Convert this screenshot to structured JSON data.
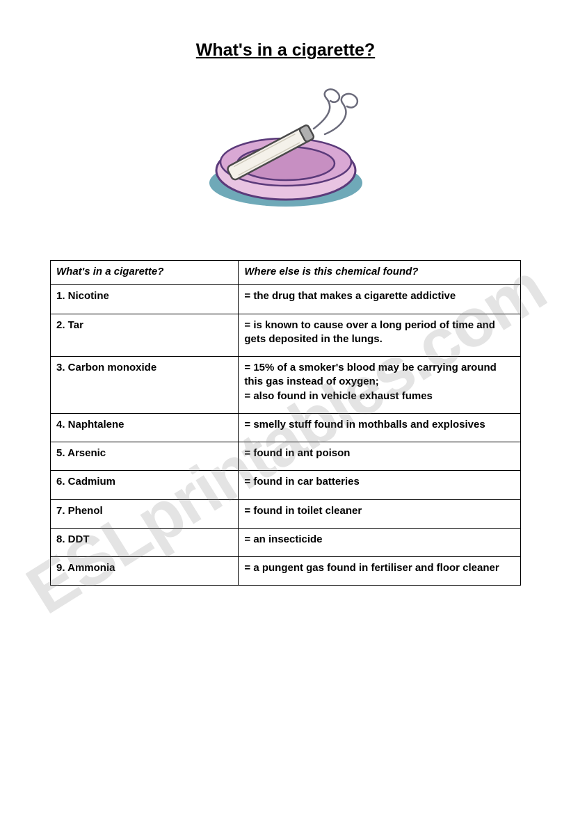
{
  "title": "What's in a cigarette?",
  "watermark": "ESLprintables.com",
  "table": {
    "header_left": "What's in a cigarette?",
    "header_right": "Where else is this chemical found?",
    "rows": [
      {
        "name": "1. Nicotine",
        "desc": "= the drug that makes a cigarette addictive"
      },
      {
        "name": "2. Tar",
        "desc": "= is known to cause over a long period of time and gets deposited in the lungs."
      },
      {
        "name": "3. Carbon monoxide",
        "desc": "= 15% of a smoker's blood may be carrying around this gas instead of oxygen;\n= also found in vehicle exhaust fumes"
      },
      {
        "name": "4. Naphtalene",
        "desc": "= smelly stuff found in mothballs and explosives"
      },
      {
        "name": "5. Arsenic",
        "desc": "= found in ant poison"
      },
      {
        "name": "6. Cadmium",
        "desc": "= found in car batteries"
      },
      {
        "name": "7. Phenol",
        "desc": "= found in toilet cleaner"
      },
      {
        "name": "8. DDT",
        "desc": "= an insecticide"
      },
      {
        "name": "9. Ammonia",
        "desc": "= a pungent gas found in fertiliser and floor cleaner"
      }
    ]
  },
  "clipart": {
    "bowl_outer_fill": "#e9c4e2",
    "bowl_inner_fill": "#c78fc2",
    "bowl_rim_fill": "#d9a8d4",
    "bowl_stroke": "#5b3a7a",
    "shadow_fill": "#6fa9b8",
    "cig_body_fill": "#f4f1ea",
    "cig_tip_fill": "#b0b0b0",
    "cig_stroke": "#4a4a4a",
    "smoke_stroke": "#6a6a7a"
  }
}
